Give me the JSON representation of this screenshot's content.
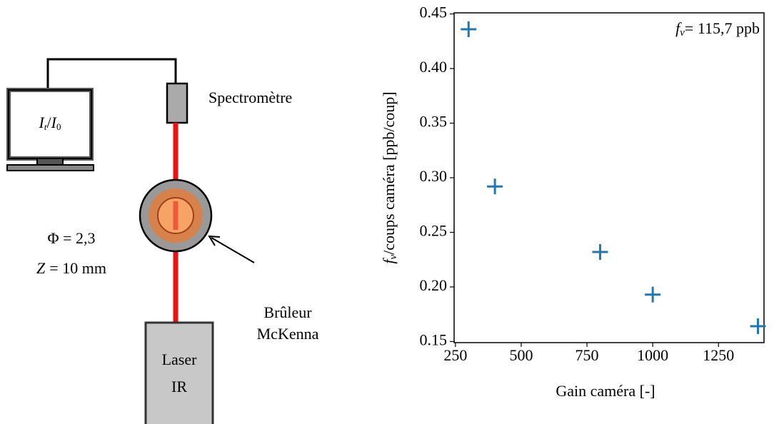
{
  "chart_data": {
    "type": "scatter",
    "x": [
      300,
      400,
      800,
      1000,
      1400
    ],
    "series": [
      {
        "name": "fv",
        "color": "#1f77b4",
        "values": [
          0.436,
          0.292,
          0.232,
          0.193,
          0.164
        ]
      }
    ],
    "xlim": [
      245,
      1423
    ],
    "ylim": [
      0.149,
      0.451
    ],
    "xticks": [
      250,
      500,
      750,
      1000,
      1250
    ],
    "yticks": [
      0.15,
      {
        "value": 0.2,
        "label": "0.20"
      },
      0.25,
      {
        "value": 0.3,
        "label": "0.30"
      },
      0.35,
      {
        "value": 0.4,
        "label": "0.40"
      },
      0.45
    ],
    "xlabel": "Gain caméra [-]",
    "ylabel": {
      "symbol": "f",
      "subscript": "v",
      "text": "/coups caméra [ppb/coup]"
    },
    "annotation": {
      "symbol": "f",
      "subscript": "v",
      "text": "= 115,7 ppb"
    },
    "grid": false,
    "marker": "plus"
  },
  "diagram": {
    "screen": {
      "numerator": "I",
      "numerator_sub": "t",
      "slash": "/",
      "denominator": "I",
      "denominator_sub": "0"
    },
    "spectrometer": "Spectromètre",
    "phi": "Φ = 2,3",
    "z_symbol": "Z",
    "z_text": "= 10 mm",
    "burner": [
      "Brûleur",
      "McKenna"
    ],
    "laser": [
      "Laser",
      "IR"
    ]
  }
}
